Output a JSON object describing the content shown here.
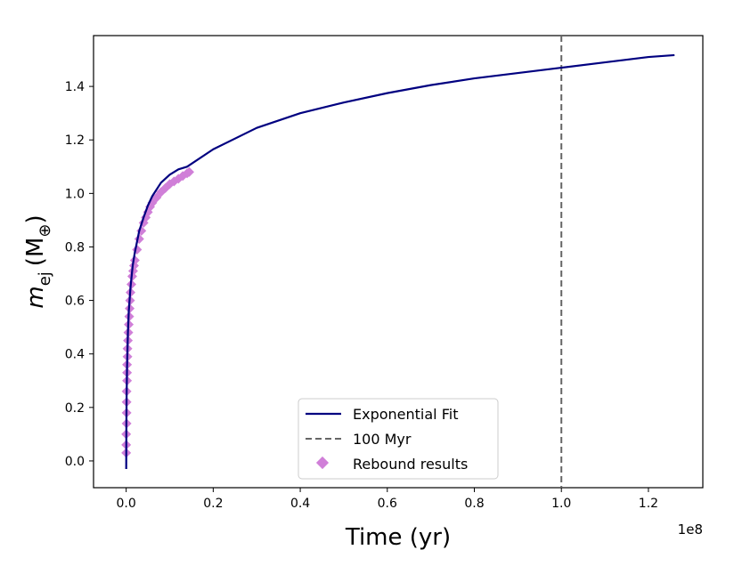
{
  "chart_data": {
    "type": "line",
    "xlabel": "Time (yr)",
    "x_offset_label": "1e8",
    "ylabel_main": "m",
    "ylabel_sub": "ej",
    "ylabel_unit": "(M",
    "ylabel_unit_sub": "⊕",
    "ylabel_close": ")",
    "xlim": [
      -0.075,
      1.325
    ],
    "ylim": [
      -0.1,
      1.59
    ],
    "x_ticks": [
      0.0,
      0.2,
      0.4,
      0.6,
      0.8,
      1.0,
      1.2
    ],
    "x_tick_labels": [
      "0.0",
      "0.2",
      "0.4",
      "0.6",
      "0.8",
      "1.0",
      "1.2"
    ],
    "y_ticks": [
      0.0,
      0.2,
      0.4,
      0.6,
      0.8,
      1.0,
      1.2,
      1.4
    ],
    "y_tick_labels": [
      "0.0",
      "0.2",
      "0.4",
      "0.6",
      "0.8",
      "1.0",
      "1.2",
      "1.4"
    ],
    "grid": false,
    "legend_position": "bottom-center",
    "colors": {
      "fit": "#000080",
      "vline": "#666666",
      "rebound": "#d07fd8"
    },
    "series": [
      {
        "name": "Exponential Fit",
        "kind": "line",
        "x": [
          0.0001,
          0.0005,
          0.001,
          0.002,
          0.004,
          0.006,
          0.01,
          0.015,
          0.02,
          0.03,
          0.04,
          0.05,
          0.06,
          0.08,
          0.1,
          0.12,
          0.14,
          0.2,
          0.3,
          0.4,
          0.5,
          0.6,
          0.7,
          0.8,
          0.9,
          1.0,
          1.1,
          1.2,
          1.26
        ],
        "y": [
          -0.03,
          0.145,
          0.24,
          0.35,
          0.48,
          0.56,
          0.65,
          0.73,
          0.78,
          0.86,
          0.91,
          0.955,
          0.99,
          1.04,
          1.07,
          1.09,
          1.1,
          1.165,
          1.245,
          1.3,
          1.34,
          1.375,
          1.405,
          1.43,
          1.45,
          1.47,
          1.49,
          1.51,
          1.517
        ]
      },
      {
        "name": "100 Myr",
        "kind": "vline",
        "x": 1.0
      },
      {
        "name": "Rebound results",
        "kind": "scatter",
        "x": [
          0.0,
          0.0,
          0.0,
          0.001,
          0.001,
          0.001,
          0.001,
          0.002,
          0.002,
          0.002,
          0.003,
          0.003,
          0.004,
          0.005,
          0.006,
          0.007,
          0.008,
          0.009,
          0.01,
          0.012,
          0.014,
          0.016,
          0.018,
          0.02,
          0.025,
          0.03,
          0.035,
          0.04,
          0.045,
          0.05,
          0.055,
          0.06,
          0.07,
          0.08,
          0.09,
          0.1,
          0.11,
          0.12,
          0.13,
          0.14,
          0.145
        ],
        "y": [
          0.03,
          0.06,
          0.1,
          0.14,
          0.18,
          0.22,
          0.26,
          0.3,
          0.33,
          0.36,
          0.39,
          0.42,
          0.45,
          0.48,
          0.51,
          0.54,
          0.57,
          0.6,
          0.63,
          0.66,
          0.69,
          0.71,
          0.73,
          0.75,
          0.79,
          0.83,
          0.86,
          0.89,
          0.91,
          0.93,
          0.95,
          0.965,
          0.985,
          1.005,
          1.02,
          1.035,
          1.045,
          1.055,
          1.065,
          1.075,
          1.08
        ]
      }
    ]
  }
}
